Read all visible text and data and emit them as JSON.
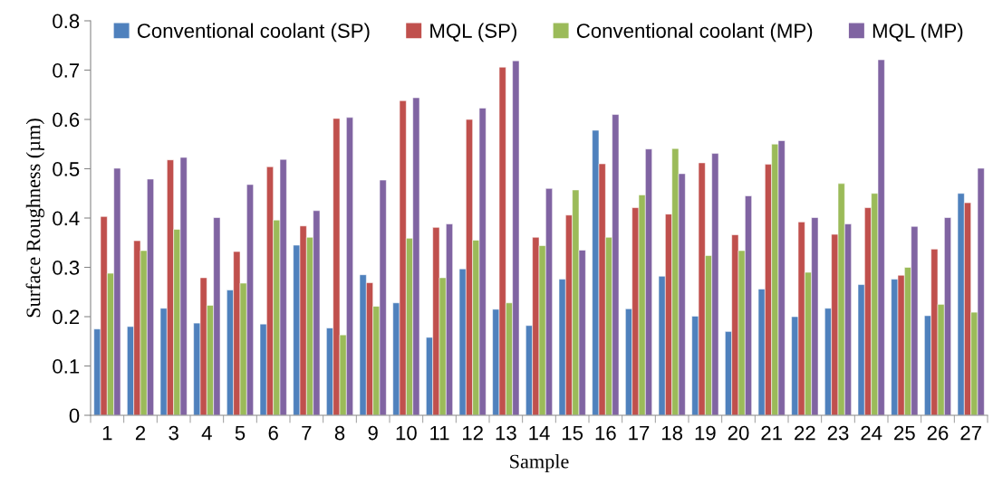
{
  "chart_data": {
    "type": "bar",
    "xlabel": "Sample",
    "ylabel": "Surface Roughness (µm)",
    "categories": [
      "1",
      "2",
      "3",
      "4",
      "5",
      "6",
      "7",
      "8",
      "9",
      "10",
      "11",
      "12",
      "13",
      "14",
      "15",
      "16",
      "17",
      "18",
      "19",
      "20",
      "21",
      "22",
      "23",
      "24",
      "25",
      "26",
      "27"
    ],
    "series": [
      {
        "name": "Conventional coolant (SP)",
        "color": "#4f81bd",
        "values": [
          0.175,
          0.18,
          0.217,
          0.187,
          0.254,
          0.185,
          0.345,
          0.177,
          0.285,
          0.228,
          0.158,
          0.297,
          0.215,
          0.182,
          0.276,
          0.578,
          0.216,
          0.282,
          0.201,
          0.17,
          0.256,
          0.2,
          0.217,
          0.265,
          0.276,
          0.202,
          0.45
        ]
      },
      {
        "name": "MQL (SP)",
        "color": "#c0504d",
        "values": [
          0.403,
          0.354,
          0.518,
          0.279,
          0.332,
          0.504,
          0.384,
          0.602,
          0.269,
          0.638,
          0.381,
          0.6,
          0.706,
          0.361,
          0.406,
          0.51,
          0.421,
          0.408,
          0.512,
          0.366,
          0.509,
          0.392,
          0.367,
          0.421,
          0.284,
          0.337,
          0.431
        ]
      },
      {
        "name": "Conventional coolant (MP)",
        "color": "#9bbb59",
        "values": [
          0.288,
          0.334,
          0.377,
          0.223,
          0.268,
          0.396,
          0.361,
          0.163,
          0.221,
          0.359,
          0.279,
          0.355,
          0.228,
          0.344,
          0.457,
          0.361,
          0.447,
          0.541,
          0.324,
          0.334,
          0.55,
          0.29,
          0.47,
          0.45,
          0.3,
          0.225,
          0.209
        ]
      },
      {
        "name": "MQL (MP)",
        "color": "#8064a2",
        "values": [
          0.501,
          0.479,
          0.523,
          0.401,
          0.468,
          0.519,
          0.415,
          0.604,
          0.477,
          0.644,
          0.388,
          0.623,
          0.719,
          0.46,
          0.335,
          0.61,
          0.54,
          0.49,
          0.531,
          0.445,
          0.557,
          0.401,
          0.388,
          0.721,
          0.383,
          0.401,
          0.501
        ]
      }
    ],
    "ylim": [
      0,
      0.8
    ],
    "yticks": [
      {
        "value": 0,
        "label": "0"
      },
      0.1,
      0.2,
      0.3,
      0.4,
      0.5,
      0.6,
      0.7,
      0.8
    ],
    "grid": false,
    "legend": "top"
  }
}
